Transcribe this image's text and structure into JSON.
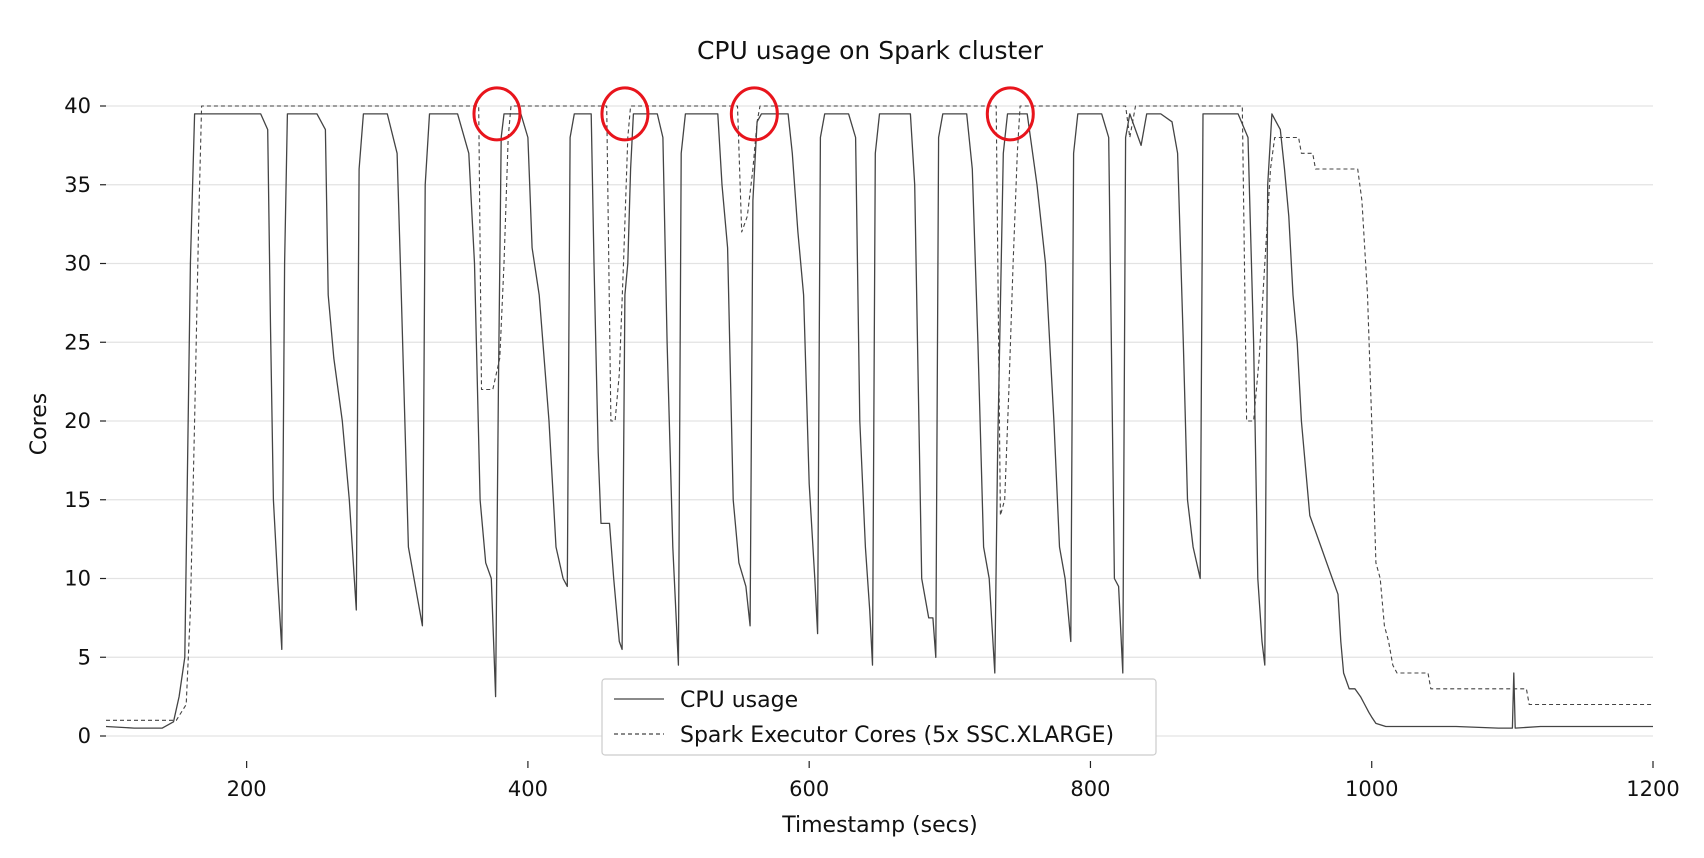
{
  "chart_data": {
    "type": "line",
    "title": "CPU usage on Spark cluster",
    "xlabel": "Timestamp (secs)",
    "ylabel": "Cores",
    "xlim": [
      100,
      1200
    ],
    "ylim": [
      -2,
      42
    ],
    "x_ticks": [
      200,
      400,
      600,
      800,
      1000,
      1200
    ],
    "y_ticks": [
      0,
      5,
      10,
      15,
      20,
      25,
      30,
      35,
      40
    ],
    "grid": "horizontal",
    "legend_position": "bottom-center",
    "highlight_circles_x": [
      378,
      469,
      561,
      743
    ],
    "highlight_circles_y": 39.5,
    "series": [
      {
        "name": "CPU usage",
        "style": "solid",
        "color": "#444444",
        "points": [
          [
            100,
            0.6
          ],
          [
            120,
            0.5
          ],
          [
            140,
            0.5
          ],
          [
            148,
            0.9
          ],
          [
            152,
            2.5
          ],
          [
            156,
            5.0
          ],
          [
            160,
            30.0
          ],
          [
            163,
            39.5
          ],
          [
            170,
            39.5
          ],
          [
            180,
            39.5
          ],
          [
            200,
            39.5
          ],
          [
            210,
            39.5
          ],
          [
            215,
            38.5
          ],
          [
            217,
            26.0
          ],
          [
            219,
            15.0
          ],
          [
            222,
            10.0
          ],
          [
            225,
            5.5
          ],
          [
            227,
            30.0
          ],
          [
            229,
            39.5
          ],
          [
            250,
            39.5
          ],
          [
            256,
            38.5
          ],
          [
            258,
            28.0
          ],
          [
            262,
            24.0
          ],
          [
            268,
            20.0
          ],
          [
            273,
            15.0
          ],
          [
            278,
            8.0
          ],
          [
            280,
            36.0
          ],
          [
            283,
            39.5
          ],
          [
            300,
            39.5
          ],
          [
            307,
            37.0
          ],
          [
            310,
            28.0
          ],
          [
            315,
            12.0
          ],
          [
            320,
            9.5
          ],
          [
            325,
            7.0
          ],
          [
            327,
            35.0
          ],
          [
            330,
            39.5
          ],
          [
            350,
            39.5
          ],
          [
            358,
            37.0
          ],
          [
            362,
            30.0
          ],
          [
            366,
            15.0
          ],
          [
            370,
            11.0
          ],
          [
            374,
            10.0
          ],
          [
            377,
            2.5
          ],
          [
            379,
            22.0
          ],
          [
            381,
            38.0
          ],
          [
            383,
            39.5
          ],
          [
            395,
            39.5
          ],
          [
            400,
            38.0
          ],
          [
            403,
            31.0
          ],
          [
            408,
            28.0
          ],
          [
            415,
            20.0
          ],
          [
            420,
            12.0
          ],
          [
            425,
            10.0
          ],
          [
            428,
            9.5
          ],
          [
            430,
            38.0
          ],
          [
            433,
            39.5
          ],
          [
            445,
            39.5
          ],
          [
            447,
            30.0
          ],
          [
            450,
            18.0
          ],
          [
            452,
            13.5
          ],
          [
            458,
            13.5
          ],
          [
            461,
            10.0
          ],
          [
            465,
            6.0
          ],
          [
            467,
            5.5
          ],
          [
            469,
            28.0
          ],
          [
            471,
            30.0
          ],
          [
            473,
            36.0
          ],
          [
            475,
            39.5
          ],
          [
            492,
            39.5
          ],
          [
            496,
            38.0
          ],
          [
            499,
            25.0
          ],
          [
            503,
            12.0
          ],
          [
            507,
            4.5
          ],
          [
            509,
            37.0
          ],
          [
            512,
            39.5
          ],
          [
            535,
            39.5
          ],
          [
            538,
            35.0
          ],
          [
            542,
            31.0
          ],
          [
            546,
            15.0
          ],
          [
            550,
            11.0
          ],
          [
            555,
            9.5
          ],
          [
            558,
            7.0
          ],
          [
            560,
            34.0
          ],
          [
            563,
            39.0
          ],
          [
            566,
            39.5
          ],
          [
            585,
            39.5
          ],
          [
            588,
            37.0
          ],
          [
            592,
            32.0
          ],
          [
            596,
            28.0
          ],
          [
            600,
            16.0
          ],
          [
            604,
            10.0
          ],
          [
            606,
            6.5
          ],
          [
            608,
            38.0
          ],
          [
            611,
            39.5
          ],
          [
            628,
            39.5
          ],
          [
            633,
            38.0
          ],
          [
            636,
            20.0
          ],
          [
            640,
            12.0
          ],
          [
            643,
            8.0
          ],
          [
            645,
            4.5
          ],
          [
            647,
            37.0
          ],
          [
            650,
            39.5
          ],
          [
            672,
            39.5
          ],
          [
            675,
            35.0
          ],
          [
            680,
            10.0
          ],
          [
            685,
            7.5
          ],
          [
            688,
            7.5
          ],
          [
            690,
            5.0
          ],
          [
            692,
            38.0
          ],
          [
            695,
            39.5
          ],
          [
            712,
            39.5
          ],
          [
            716,
            36.0
          ],
          [
            720,
            25.0
          ],
          [
            724,
            12.0
          ],
          [
            728,
            10.0
          ],
          [
            732,
            4.0
          ],
          [
            734,
            18.0
          ],
          [
            738,
            37.0
          ],
          [
            741,
            39.5
          ],
          [
            755,
            39.5
          ],
          [
            762,
            35.0
          ],
          [
            768,
            30.0
          ],
          [
            774,
            20.0
          ],
          [
            778,
            12.0
          ],
          [
            782,
            10.0
          ],
          [
            786,
            6.0
          ],
          [
            788,
            37.0
          ],
          [
            791,
            39.5
          ],
          [
            808,
            39.5
          ],
          [
            813,
            38.0
          ],
          [
            817,
            10.0
          ],
          [
            820,
            9.5
          ],
          [
            823,
            4.0
          ],
          [
            825,
            38.0
          ],
          [
            828,
            39.5
          ],
          [
            836,
            37.5
          ],
          [
            840,
            39.5
          ],
          [
            850,
            39.5
          ],
          [
            858,
            39.0
          ],
          [
            862,
            37.0
          ],
          [
            866,
            25.0
          ],
          [
            869,
            15.0
          ],
          [
            873,
            12.0
          ],
          [
            878,
            10.0
          ],
          [
            880,
            39.5
          ],
          [
            905,
            39.5
          ],
          [
            912,
            38.0
          ],
          [
            916,
            25.0
          ],
          [
            919,
            10.0
          ],
          [
            922,
            6.0
          ],
          [
            924,
            4.5
          ],
          [
            926,
            35.0
          ],
          [
            929,
            39.5
          ],
          [
            932,
            39.0
          ],
          [
            935,
            38.5
          ],
          [
            938,
            36.0
          ],
          [
            941,
            33.0
          ],
          [
            944,
            28.0
          ],
          [
            947,
            25.0
          ],
          [
            950,
            20.0
          ],
          [
            953,
            17.0
          ],
          [
            956,
            14.0
          ],
          [
            960,
            13.0
          ],
          [
            964,
            12.0
          ],
          [
            968,
            11.0
          ],
          [
            972,
            10.0
          ],
          [
            976,
            9.0
          ],
          [
            978,
            6.0
          ],
          [
            980,
            4.0
          ],
          [
            984,
            3.0
          ],
          [
            988,
            3.0
          ],
          [
            992,
            2.5
          ],
          [
            995,
            2.0
          ],
          [
            998,
            1.5
          ],
          [
            1000,
            1.2
          ],
          [
            1003,
            0.8
          ],
          [
            1010,
            0.6
          ],
          [
            1030,
            0.6
          ],
          [
            1060,
            0.6
          ],
          [
            1090,
            0.5
          ],
          [
            1100,
            0.5
          ],
          [
            1101,
            4.0
          ],
          [
            1102,
            0.5
          ],
          [
            1120,
            0.6
          ],
          [
            1150,
            0.6
          ],
          [
            1180,
            0.6
          ],
          [
            1200,
            0.6
          ]
        ]
      },
      {
        "name": "Spark Executor Cores (5x SSC.XLARGE)",
        "style": "dashed",
        "color": "#444444",
        "points": [
          [
            100,
            1.0
          ],
          [
            150,
            1.0
          ],
          [
            157,
            2.0
          ],
          [
            160,
            8.0
          ],
          [
            163,
            20.0
          ],
          [
            166,
            33.0
          ],
          [
            168,
            40.0
          ],
          [
            365,
            40.0
          ],
          [
            367,
            22.0
          ],
          [
            375,
            22.0
          ],
          [
            380,
            24.0
          ],
          [
            383,
            30.0
          ],
          [
            386,
            38.0
          ],
          [
            388,
            40.0
          ],
          [
            456,
            40.0
          ],
          [
            459,
            20.0
          ],
          [
            462,
            20.0
          ],
          [
            465,
            23.0
          ],
          [
            468,
            30.0
          ],
          [
            471,
            38.0
          ],
          [
            473,
            40.0
          ],
          [
            549,
            40.0
          ],
          [
            552,
            32.0
          ],
          [
            556,
            33.0
          ],
          [
            560,
            36.0
          ],
          [
            563,
            39.0
          ],
          [
            565,
            40.0
          ],
          [
            733,
            40.0
          ],
          [
            736,
            14.0
          ],
          [
            739,
            15.0
          ],
          [
            742,
            22.0
          ],
          [
            745,
            30.0
          ],
          [
            748,
            37.0
          ],
          [
            750,
            40.0
          ],
          [
            825,
            40.0
          ],
          [
            828,
            38.0
          ],
          [
            832,
            40.0
          ],
          [
            908,
            40.0
          ],
          [
            911,
            20.0
          ],
          [
            916,
            20.0
          ],
          [
            920,
            24.0
          ],
          [
            924,
            30.0
          ],
          [
            928,
            36.0
          ],
          [
            931,
            38.0
          ],
          [
            948,
            38.0
          ],
          [
            950,
            37.0
          ],
          [
            958,
            37.0
          ],
          [
            960,
            36.0
          ],
          [
            990,
            36.0
          ],
          [
            993,
            34.0
          ],
          [
            997,
            28.0
          ],
          [
            1000,
            20.0
          ],
          [
            1003,
            11.0
          ],
          [
            1006,
            10.0
          ],
          [
            1009,
            7.0
          ],
          [
            1012,
            6.0
          ],
          [
            1015,
            4.5
          ],
          [
            1018,
            4.0
          ],
          [
            1040,
            4.0
          ],
          [
            1042,
            3.0
          ],
          [
            1110,
            3.0
          ],
          [
            1112,
            2.0
          ],
          [
            1200,
            2.0
          ]
        ]
      }
    ]
  }
}
